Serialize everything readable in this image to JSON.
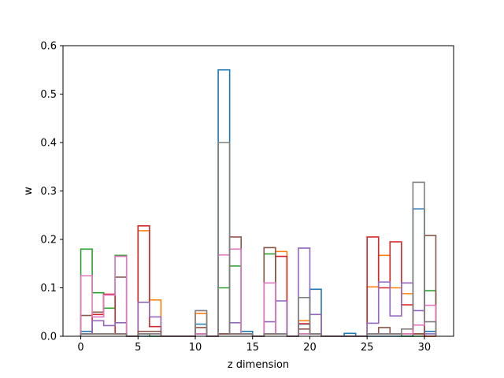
{
  "chart_data": {
    "type": "step",
    "xlabel": "z dimension",
    "ylabel": "w",
    "xlim": [
      -1.55,
      32.55
    ],
    "ylim": [
      0,
      0.6
    ],
    "x_ticks": [
      0,
      5,
      10,
      15,
      20,
      25,
      30
    ],
    "y_ticks": [
      0.0,
      0.1,
      0.2,
      0.3,
      0.4,
      0.5,
      0.6
    ],
    "y_tick_labels": [
      "0.0",
      "0.1",
      "0.2",
      "0.3",
      "0.4",
      "0.5",
      "0.6"
    ],
    "x_edges": [
      0,
      1,
      2,
      3,
      4,
      5,
      6,
      7,
      8,
      9,
      10,
      11,
      12,
      13,
      14,
      15,
      16,
      17,
      18,
      19,
      20,
      21,
      22,
      23,
      24,
      25,
      26,
      27,
      28,
      29,
      30,
      31
    ],
    "grid": false,
    "legend": "none",
    "series": [
      {
        "color": "#1f77b4",
        "values": [
          0.01,
          0.005,
          0.005,
          0.005,
          0,
          0,
          0,
          0,
          0,
          0,
          0.025,
          0,
          0.55,
          0.005,
          0.01,
          0,
          0.005,
          0.005,
          0,
          0.025,
          0.097,
          0,
          0,
          0.006,
          0,
          0,
          0,
          0,
          0,
          0.263,
          0.01
        ]
      },
      {
        "color": "#ff7f0e",
        "values": [
          0.005,
          0.005,
          0.005,
          0.005,
          0,
          0.218,
          0.075,
          0,
          0,
          0,
          0.047,
          0,
          0.005,
          0.005,
          0.005,
          0,
          0.005,
          0.175,
          0,
          0.032,
          0.005,
          0,
          0,
          0,
          0,
          0.102,
          0.167,
          0.1,
          0.088,
          0.005,
          0
        ]
      },
      {
        "color": "#2ca02c",
        "values": [
          0.18,
          0.09,
          0.058,
          0.167,
          0,
          0.005,
          0,
          0,
          0,
          0,
          0.005,
          0,
          0.1,
          0.145,
          0.005,
          0,
          0.17,
          0.005,
          0,
          0.005,
          0.005,
          0,
          0,
          0,
          0,
          0.005,
          0.005,
          0.005,
          0,
          0,
          0.094
        ]
      },
      {
        "color": "#d62728",
        "values": [
          0.005,
          0.045,
          0.087,
          0.005,
          0,
          0.228,
          0.02,
          0,
          0,
          0,
          0.005,
          0,
          0.005,
          0.005,
          0.005,
          0,
          0.005,
          0.165,
          0,
          0.026,
          0.005,
          0,
          0,
          0,
          0,
          0.205,
          0.1,
          0.195,
          0.065,
          0.005,
          0
        ]
      },
      {
        "color": "#9467bd",
        "values": [
          0.005,
          0.032,
          0.022,
          0.028,
          0,
          0.07,
          0.04,
          0,
          0,
          0,
          0.005,
          0,
          0.005,
          0.028,
          0.005,
          0,
          0.03,
          0.073,
          0,
          0.182,
          0.045,
          0,
          0,
          0,
          0,
          0.027,
          0.112,
          0.042,
          0.11,
          0.053,
          0.005
        ]
      },
      {
        "color": "#8c564b",
        "values": [
          0.043,
          0.05,
          0.085,
          0.122,
          0,
          0.01,
          0.01,
          0,
          0,
          0,
          0.018,
          0,
          0.005,
          0.205,
          0.005,
          0,
          0.183,
          0.005,
          0,
          0.015,
          0.005,
          0,
          0,
          0,
          0,
          0.005,
          0.018,
          0.005,
          0.005,
          0.005,
          0.208
        ]
      },
      {
        "color": "#e377c2",
        "values": [
          0.125,
          0.04,
          0.085,
          0.165,
          0,
          0.005,
          0.005,
          0,
          0,
          0,
          0.005,
          0,
          0.168,
          0.18,
          0.005,
          0,
          0.11,
          0.005,
          0,
          0.005,
          0.005,
          0,
          0,
          0,
          0,
          0.005,
          0.005,
          0.005,
          0.005,
          0.023,
          0.064
        ]
      },
      {
        "color": "#7f7f7f",
        "values": [
          0.005,
          0.005,
          0.005,
          0.005,
          0,
          0.005,
          0.005,
          0,
          0,
          0,
          0.053,
          0,
          0.4,
          0.005,
          0.005,
          0,
          0.005,
          0.005,
          0,
          0.08,
          0.005,
          0,
          0,
          0,
          0,
          0.005,
          0.005,
          0.005,
          0.015,
          0.318,
          0.03
        ]
      }
    ]
  }
}
